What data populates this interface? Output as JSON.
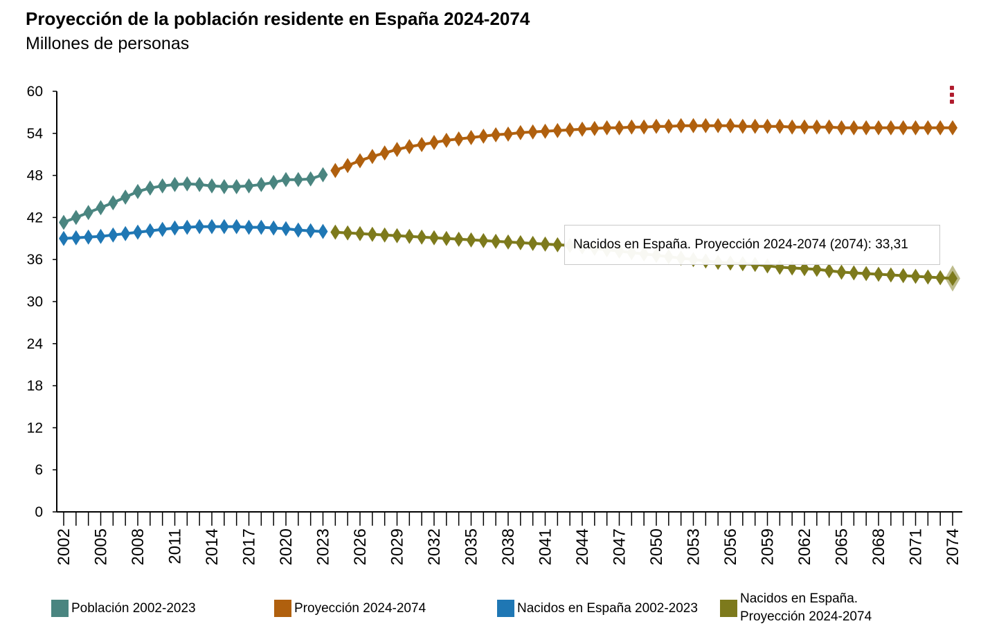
{
  "chart_data": {
    "type": "line",
    "title": "Proyección de la población residente en España 2024-2074",
    "subtitle": "Millones de personas",
    "xlabel": "",
    "ylabel": "",
    "ylim": [
      0,
      60
    ],
    "yticks": [
      "0",
      "6",
      "12",
      "18",
      "24",
      "30",
      "36",
      "42",
      "48",
      "54",
      "60"
    ],
    "xlim": [
      2002,
      2074
    ],
    "xticks": [
      "2002",
      "2005",
      "2008",
      "2011",
      "2014",
      "2017",
      "2020",
      "2023",
      "2026",
      "2029",
      "2032",
      "2035",
      "2038",
      "2041",
      "2044",
      "2047",
      "2050",
      "2053",
      "2056",
      "2059",
      "2062",
      "2065",
      "2068",
      "2071",
      "2074"
    ],
    "grid": false,
    "legend_position": "bottom",
    "series": [
      {
        "name": "Población 2002-2023",
        "color": "#4a8580",
        "x": [
          2002,
          2003,
          2004,
          2005,
          2006,
          2007,
          2008,
          2009,
          2010,
          2011,
          2012,
          2013,
          2014,
          2015,
          2016,
          2017,
          2018,
          2019,
          2020,
          2021,
          2022,
          2023
        ],
        "values": [
          41.3,
          42.0,
          42.7,
          43.4,
          44.1,
          44.9,
          45.7,
          46.2,
          46.5,
          46.7,
          46.8,
          46.7,
          46.5,
          46.4,
          46.4,
          46.5,
          46.7,
          47.0,
          47.4,
          47.4,
          47.5,
          48.1
        ]
      },
      {
        "name": "Proyección 2024-2074",
        "color": "#b0600e",
        "x": [
          2024,
          2025,
          2026,
          2027,
          2028,
          2029,
          2030,
          2031,
          2032,
          2033,
          2034,
          2035,
          2036,
          2037,
          2038,
          2039,
          2040,
          2041,
          2042,
          2043,
          2044,
          2045,
          2046,
          2047,
          2048,
          2049,
          2050,
          2051,
          2052,
          2053,
          2054,
          2055,
          2056,
          2057,
          2058,
          2059,
          2060,
          2061,
          2062,
          2063,
          2064,
          2065,
          2066,
          2067,
          2068,
          2069,
          2070,
          2071,
          2072,
          2073,
          2074
        ],
        "values": [
          48.7,
          49.4,
          50.1,
          50.7,
          51.2,
          51.7,
          52.1,
          52.4,
          52.7,
          53.0,
          53.2,
          53.4,
          53.6,
          53.8,
          53.9,
          54.1,
          54.2,
          54.3,
          54.4,
          54.5,
          54.6,
          54.7,
          54.8,
          54.8,
          54.9,
          54.9,
          55.0,
          55.0,
          55.1,
          55.1,
          55.1,
          55.1,
          55.1,
          55.0,
          55.0,
          55.0,
          55.0,
          54.9,
          54.9,
          54.9,
          54.9,
          54.8,
          54.8,
          54.8,
          54.8,
          54.8,
          54.8,
          54.8,
          54.8,
          54.8,
          54.8
        ]
      },
      {
        "name": "Nacidos en España 2002-2023",
        "color": "#1f77b4",
        "x": [
          2002,
          2003,
          2004,
          2005,
          2006,
          2007,
          2008,
          2009,
          2010,
          2011,
          2012,
          2013,
          2014,
          2015,
          2016,
          2017,
          2018,
          2019,
          2020,
          2021,
          2022,
          2023
        ],
        "values": [
          39.0,
          39.1,
          39.2,
          39.3,
          39.5,
          39.7,
          39.9,
          40.1,
          40.3,
          40.5,
          40.6,
          40.7,
          40.7,
          40.7,
          40.7,
          40.6,
          40.6,
          40.5,
          40.4,
          40.2,
          40.1,
          40.0
        ]
      },
      {
        "name": "Nacidos en España. Proyección 2024-2074",
        "color": "#7d7a1c",
        "x": [
          2024,
          2025,
          2026,
          2027,
          2028,
          2029,
          2030,
          2031,
          2032,
          2033,
          2034,
          2035,
          2036,
          2037,
          2038,
          2039,
          2040,
          2041,
          2042,
          2043,
          2044,
          2045,
          2046,
          2047,
          2048,
          2049,
          2050,
          2051,
          2052,
          2053,
          2054,
          2055,
          2056,
          2057,
          2058,
          2059,
          2060,
          2061,
          2062,
          2063,
          2064,
          2065,
          2066,
          2067,
          2068,
          2069,
          2070,
          2071,
          2072,
          2073,
          2074
        ],
        "values": [
          39.9,
          39.8,
          39.7,
          39.6,
          39.5,
          39.4,
          39.3,
          39.2,
          39.1,
          39.0,
          38.9,
          38.8,
          38.7,
          38.6,
          38.5,
          38.4,
          38.3,
          38.2,
          38.1,
          38.0,
          37.8,
          37.6,
          37.4,
          37.2,
          37.0,
          36.8,
          36.6,
          36.4,
          36.2,
          36.0,
          35.8,
          35.6,
          35.5,
          35.4,
          35.3,
          35.1,
          34.9,
          34.8,
          34.7,
          34.6,
          34.4,
          34.2,
          34.1,
          34.0,
          33.9,
          33.8,
          33.7,
          33.6,
          33.5,
          33.4,
          33.31
        ]
      }
    ],
    "tooltip": {
      "text": "Nacidos en España. Proyección 2024-2074 (2074): 33,31",
      "series": "Nacidos en España. Proyección 2024-2074",
      "x": 2074,
      "value": 33.31
    }
  }
}
